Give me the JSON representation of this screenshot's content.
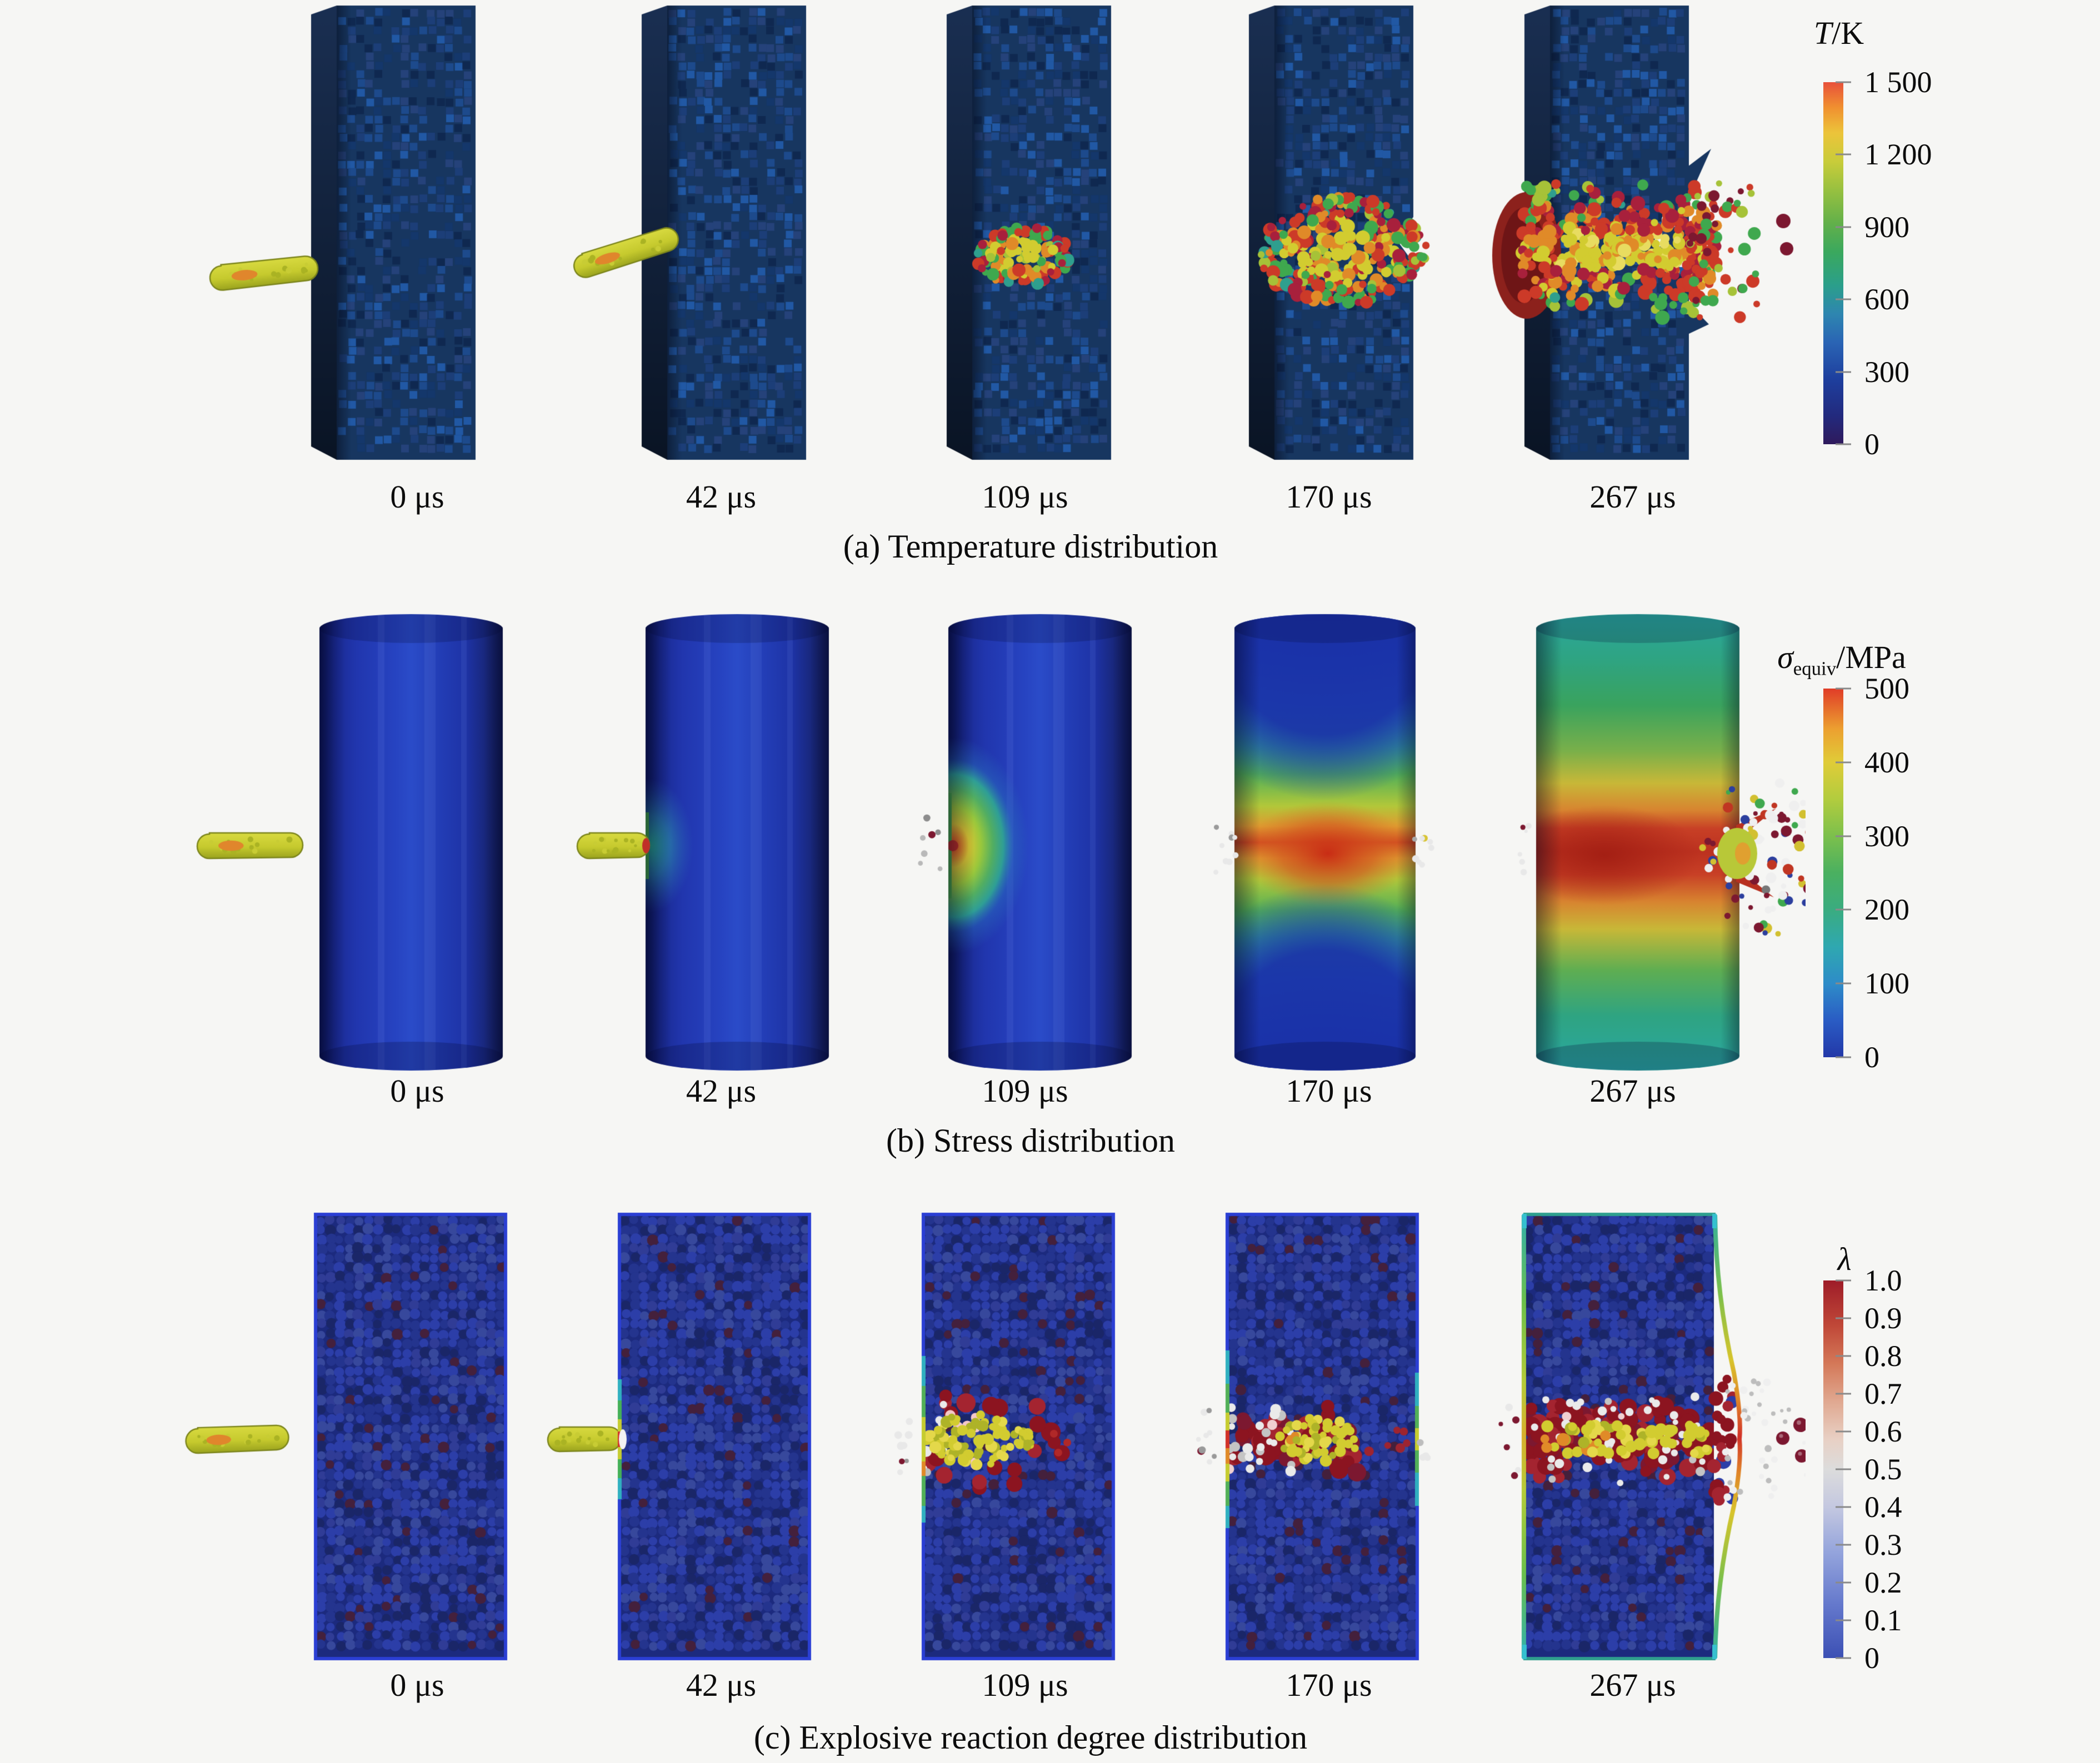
{
  "figure": {
    "rows": [
      {
        "key": "temperature",
        "caption": "(a) Temperature distribution",
        "times": [
          "0 μs",
          "42 μs",
          "109 μs",
          "170 μs",
          "267 μs"
        ],
        "stages": [
          0,
          1,
          2,
          3,
          4
        ],
        "legend": {
          "title_main": "T",
          "title_unit": "/K",
          "ticks": [
            "1 500",
            "1 200",
            "900",
            "600",
            "300",
            "0"
          ]
        }
      },
      {
        "key": "stress",
        "caption": "(b) Stress distribution",
        "times": [
          "0 μs",
          "42 μs",
          "109 μs",
          "170 μs",
          "267 μs"
        ],
        "stages": [
          0,
          1,
          2,
          3,
          4
        ],
        "legend": {
          "title_main": "σ",
          "title_sub": "equiv",
          "title_unit": "/MPa",
          "ticks": [
            "500",
            "400",
            "300",
            "200",
            "100",
            "0"
          ]
        }
      },
      {
        "key": "reaction",
        "caption": "(c) Explosive reaction degree distribution",
        "times": [
          "0 μs",
          "42 μs",
          "109 μs",
          "170 μs",
          "267 μs"
        ],
        "stages": [
          0,
          1,
          2,
          3,
          4
        ],
        "legend": {
          "title_main": "λ",
          "ticks": [
            "1.0",
            "0.9",
            "0.8",
            "0.7",
            "0.6",
            "0.5",
            "0.4",
            "0.3",
            "0.2",
            "0.1",
            "0"
          ]
        }
      }
    ],
    "palettes": {
      "background": "#f6f6f4",
      "slab_front": "#173660",
      "slab_speckles": [
        "#1d4a8c",
        "#14376b",
        "#0f2850",
        "#2158a4",
        "#25427a",
        "#1c3e78"
      ],
      "projectile": "#c6ca2e",
      "projectile_dark": "#7c851c",
      "projectile_hot": "#e0862c",
      "rect_border": "#2b3fd4",
      "rect_base": "#1c2a7e",
      "hot": {
        "yellow": "#d2cc30",
        "yellowgreen": "#a6c238",
        "orange": "#e08a28",
        "red": "#cc3a28",
        "green": "#3fa84e",
        "crimson": "#a8203c",
        "maroon": "#7c1830",
        "darkred": "#8c1420",
        "white": "#efefef"
      },
      "bar_temperature": [
        "#2f1a5c 0%",
        "#222a7e 8%",
        "#1e3f9e 18%",
        "#2a64b4 28%",
        "#2e86b0 36%",
        "#2b9f8a 44%",
        "#3aa85e 53%",
        "#62b04a 61%",
        "#96c040 70%",
        "#c8cc3a 78%",
        "#ecc43a 86%",
        "#f09030 93%",
        "#e8503a 100%"
      ],
      "bar_stress": [
        "#2338a8 0%",
        "#2a5cc4 10%",
        "#2e8cc8 20%",
        "#2fa8b0 30%",
        "#3aac80 40%",
        "#4ab060 50%",
        "#7cc04c 60%",
        "#b2cc3e 70%",
        "#e0cc38 80%",
        "#eca030 89%",
        "#e03c28 100%"
      ],
      "bar_reaction": [
        "#3c50b4 0%",
        "#6478cc 14%",
        "#94a4dc 28%",
        "#c4c8e0 40%",
        "#dcdcdc 50%",
        "#e8d0c4 58%",
        "#e0a890 68%",
        "#d47858 78%",
        "#c04838 88%",
        "#9e1c28 100%"
      ]
    }
  }
}
